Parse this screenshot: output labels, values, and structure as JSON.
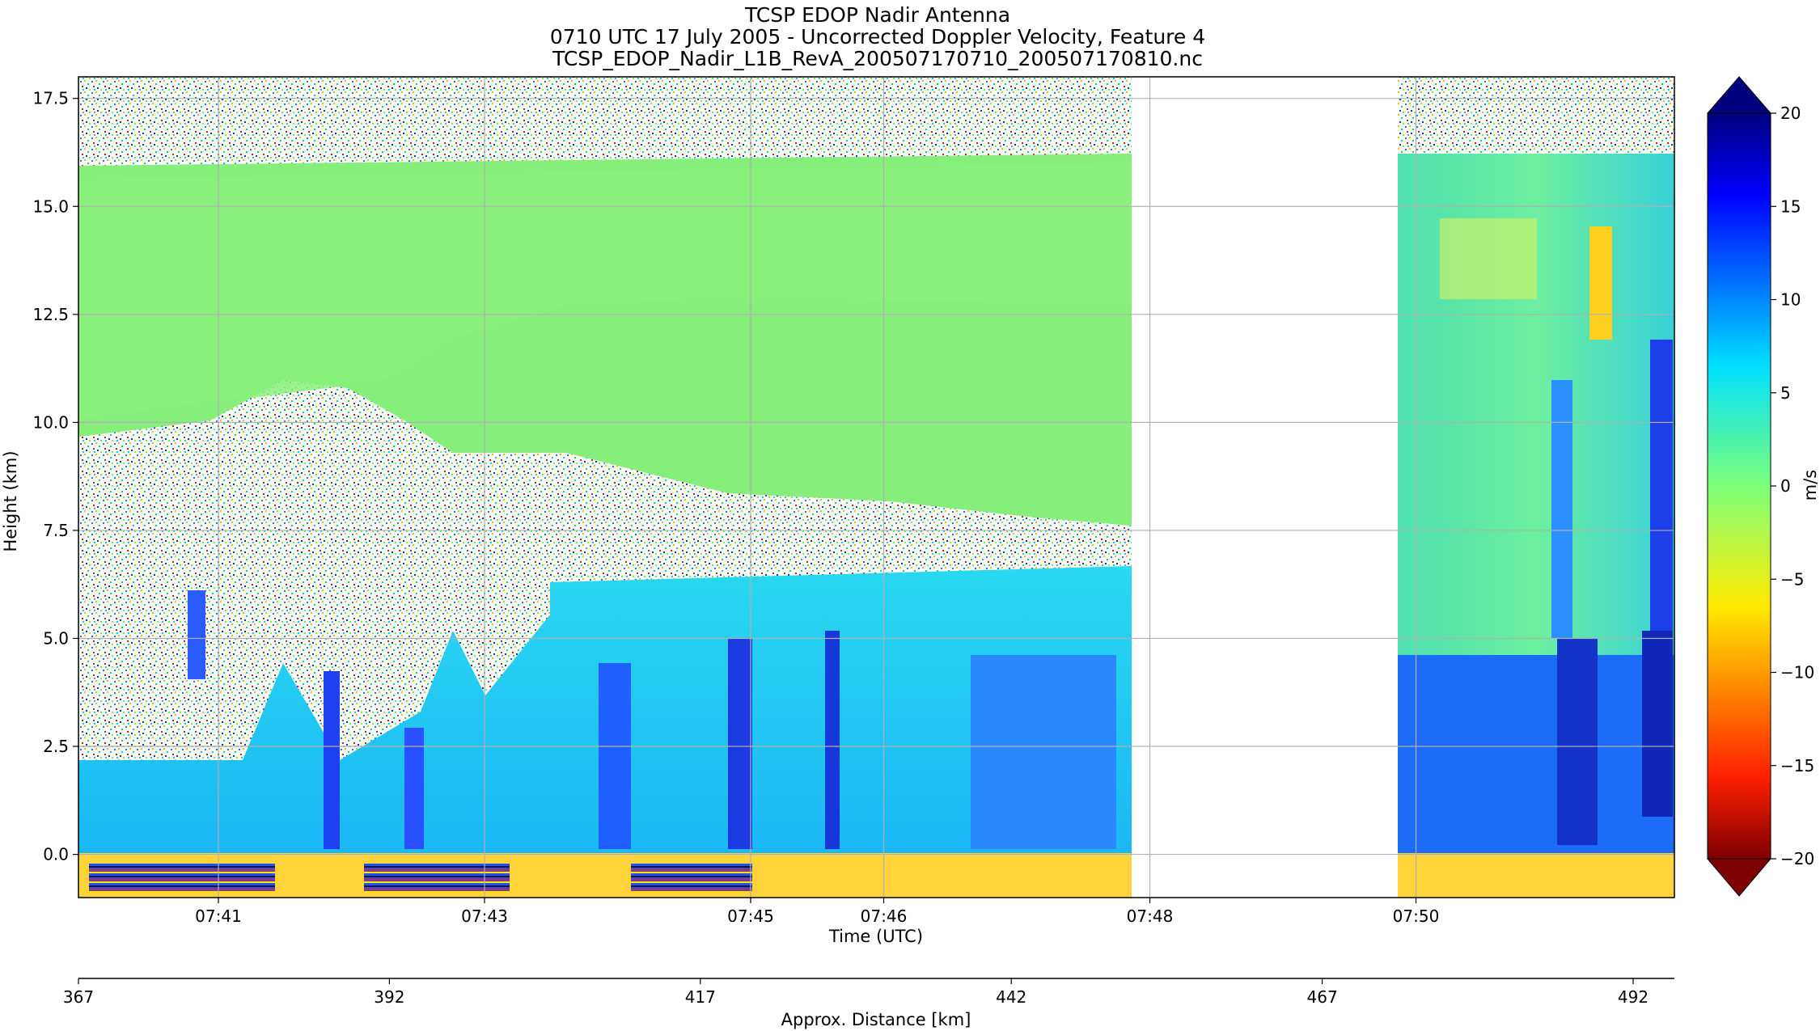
{
  "chart_data": {
    "type": "heatmap",
    "title": [
      "TCSP EDOP Nadir Antenna",
      "0710 UTC 17 July 2005 - Uncorrected Doppler Velocity, Feature 4",
      "TCSP_EDOP_Nadir_L1B_RevA_200507170710_200507170810.nc"
    ],
    "xlabel": "Time (UTC)",
    "ylabel": "Height (km)",
    "x_ticks": [
      "07:41",
      "07:43",
      "07:45",
      "07:46",
      "07:48",
      "07:50"
    ],
    "y_ticks": [
      "0.0",
      "2.5",
      "5.0",
      "7.5",
      "10.0",
      "12.5",
      "15.0",
      "17.5"
    ],
    "ylim": [
      -1.0,
      18.0
    ],
    "grid": true,
    "secondary_xlabel": "Approx. Distance [km]",
    "secondary_x_ticks": [
      "367",
      "392",
      "417",
      "442",
      "467",
      "492"
    ],
    "no_data_interval": [
      "07:47",
      "07:49"
    ],
    "colorbar": {
      "label": "m/s",
      "ticks": [
        "20",
        "15",
        "10",
        "5",
        "0",
        "−5",
        "−10",
        "−15",
        "−20"
      ],
      "range": [
        -20,
        20
      ],
      "colormap": "jet_r",
      "extend": "both"
    }
  }
}
